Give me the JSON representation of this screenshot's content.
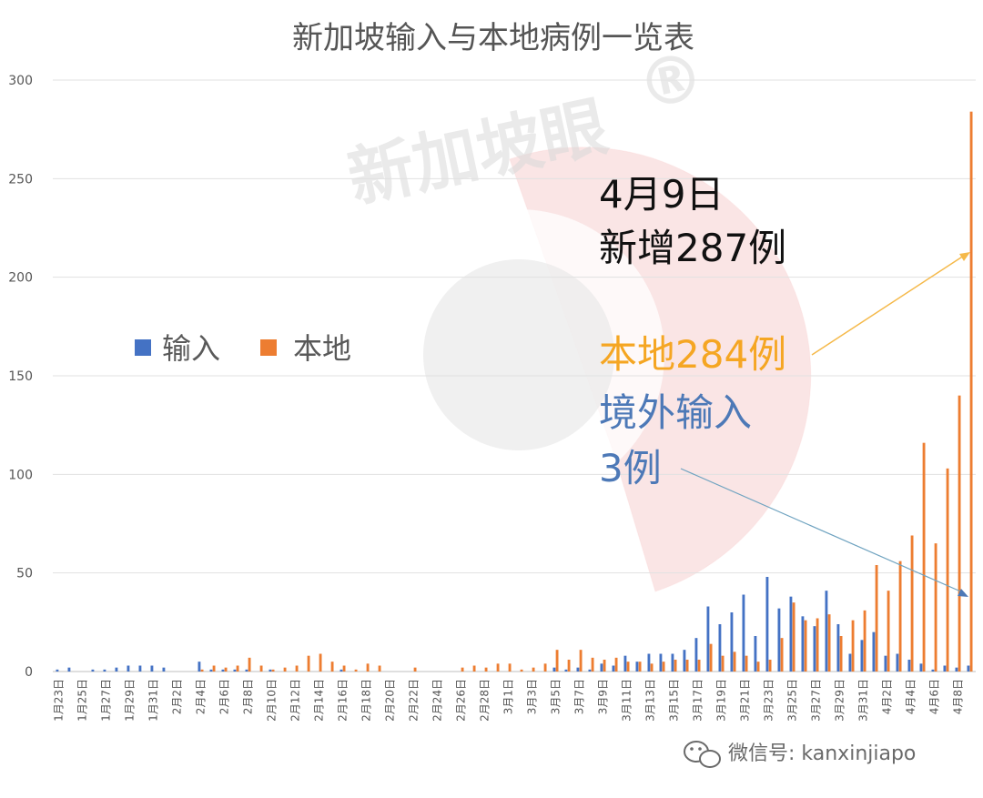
{
  "chart_data": {
    "type": "bar",
    "title": "新加坡输入与本地病例一览表",
    "xlabel": "",
    "ylabel": "",
    "ylim": [
      0,
      300
    ],
    "y_ticks": [
      "0",
      "50",
      "100",
      "150",
      "200",
      "250",
      "300"
    ],
    "grid": true,
    "legend_position": "middle-left",
    "categories": [
      "1月23日",
      "1月24日",
      "1月25日",
      "1月26日",
      "1月27日",
      "1月28日",
      "1月29日",
      "1月30日",
      "1月31日",
      "2月1日",
      "2月2日",
      "2月3日",
      "2月4日",
      "2月5日",
      "2月6日",
      "2月7日",
      "2月8日",
      "2月9日",
      "2月10日",
      "2月11日",
      "2月12日",
      "2月13日",
      "2月14日",
      "2月15日",
      "2月16日",
      "2月17日",
      "2月18日",
      "2月19日",
      "2月20日",
      "2月21日",
      "2月22日",
      "2月23日",
      "2月24日",
      "2月25日",
      "2月26日",
      "2月27日",
      "2月28日",
      "2月29日",
      "3月1日",
      "3月2日",
      "3月3日",
      "3月4日",
      "3月5日",
      "3月6日",
      "3月7日",
      "3月8日",
      "3月9日",
      "3月10日",
      "3月11日",
      "3月12日",
      "3月13日",
      "3月14日",
      "3月15日",
      "3月16日",
      "3月17日",
      "3月18日",
      "3月19日",
      "3月20日",
      "3月21日",
      "3月22日",
      "3月23日",
      "3月24日",
      "3月25日",
      "3月26日",
      "3月27日",
      "3月28日",
      "3月29日",
      "3月30日",
      "3月31日",
      "4月1日",
      "4月2日",
      "4月3日",
      "4月4日",
      "4月5日",
      "4月6日",
      "4月7日",
      "4月8日",
      "4月9日"
    ],
    "x_tick_labels": [
      "1月23日",
      "1月25日",
      "1月27日",
      "1月29日",
      "1月31日",
      "2月2日",
      "2月4日",
      "2月6日",
      "2月8日",
      "2月10日",
      "2月12日",
      "2月14日",
      "2月16日",
      "2月18日",
      "2月20日",
      "2月22日",
      "2月24日",
      "2月26日",
      "2月28日",
      "3月1日",
      "3月3日",
      "3月5日",
      "3月7日",
      "3月9日",
      "3月11日",
      "3月13日",
      "3月15日",
      "3月17日",
      "3月19日",
      "3月21日",
      "3月23日",
      "3月25日",
      "3月27日",
      "3月29日",
      "3月31日",
      "4月2日",
      "4月4日",
      "4月6日",
      "4月8日"
    ],
    "series": [
      {
        "name": "输入",
        "color": "#4472C4",
        "values": [
          1,
          2,
          0,
          1,
          1,
          2,
          3,
          3,
          3,
          2,
          0,
          0,
          5,
          1,
          1,
          1,
          1,
          0,
          1,
          0,
          0,
          0,
          0,
          0,
          1,
          0,
          0,
          0,
          0,
          0,
          0,
          0,
          0,
          0,
          0,
          0,
          0,
          0,
          0,
          0,
          0,
          0,
          2,
          1,
          2,
          1,
          4,
          3,
          8,
          5,
          9,
          9,
          9,
          11,
          17,
          33,
          24,
          30,
          39,
          18,
          48,
          32,
          38,
          28,
          23,
          41,
          24,
          9,
          16,
          20,
          8,
          9,
          6,
          4,
          1,
          3,
          2,
          3
        ]
      },
      {
        "name": "本地",
        "color": "#ED7D31",
        "values": [
          0,
          0,
          0,
          0,
          0,
          0,
          0,
          0,
          0,
          0,
          0,
          0,
          1,
          3,
          2,
          3,
          7,
          3,
          1,
          2,
          3,
          8,
          9,
          5,
          3,
          1,
          4,
          3,
          0,
          0,
          2,
          0,
          0,
          0,
          2,
          3,
          2,
          4,
          4,
          1,
          2,
          4,
          11,
          6,
          11,
          7,
          6,
          7,
          5,
          5,
          4,
          5,
          6,
          6,
          6,
          14,
          8,
          10,
          8,
          5,
          6,
          17,
          35,
          26,
          27,
          29,
          18,
          26,
          31,
          54,
          41,
          56,
          69,
          116,
          65,
          103,
          140,
          284
        ]
      }
    ]
  },
  "annotations": {
    "date": "4月9日",
    "total": "新增287例",
    "local": "本地284例",
    "imported_line1": "境外输入",
    "imported_line2": "3例",
    "colors": {
      "black": "#111111",
      "orange": "#F5A623",
      "blue": "#4D79B7",
      "arrow_orange": "#F5B94A",
      "arrow_blue": "#6FA3C0"
    }
  },
  "watermark": {
    "brand": "新加坡眼",
    "registered": "®",
    "color": "#F2A6A6"
  },
  "footer": {
    "icon": "wechat-icon",
    "text": "微信号: kanxinjiapo"
  }
}
